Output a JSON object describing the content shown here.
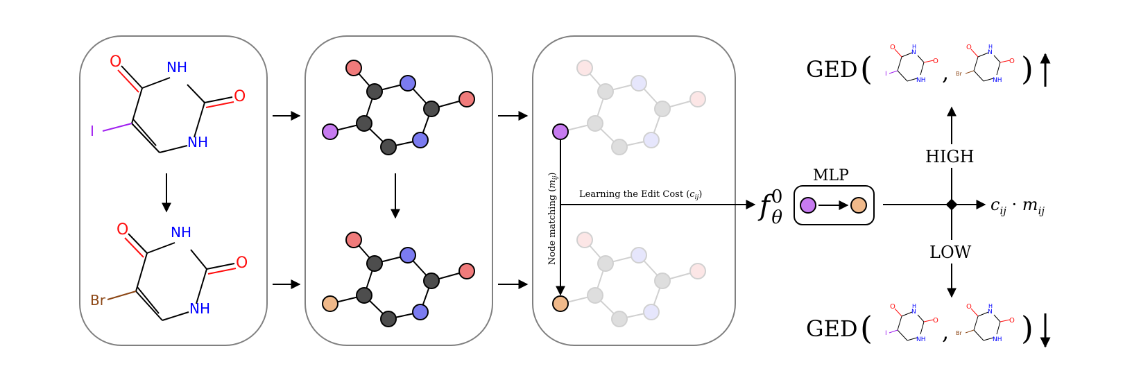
{
  "colors": {
    "oxygen": "#ff0d0d",
    "nitrogen": "#0000ff",
    "iodine": "#a020f0",
    "bromine": "#8b4513",
    "bond": "#000000",
    "node_oxygen": "#f07b7b",
    "node_nitrogen": "#7b7bf0",
    "node_carbon": "#4d4d4d",
    "node_iodine": "#c77bf0",
    "node_bromine": "#f0b98a",
    "panel_border": "#808080"
  },
  "molecule_a": {
    "atoms": {
      "O1": "O",
      "O2": "O",
      "NH1": "NH",
      "NH2": "NH",
      "X": "I"
    }
  },
  "molecule_b": {
    "atoms": {
      "O1": "O",
      "O2": "O",
      "NH1": "NH",
      "NH2": "NH",
      "X": "Br"
    }
  },
  "panel3": {
    "node_matching_label": "Node matching (m_ij)",
    "edit_cost_label": "Learning the Edit Cost (c_ij)"
  },
  "mlp": {
    "function_label": "f_θ^0",
    "box_label": "MLP"
  },
  "output": {
    "result_label": "c_ij · m_ij",
    "high_label": "HIGH",
    "low_label": "LOW",
    "ged_label": "GED",
    "small_atoms": {
      "O": "O",
      "NH": "NH",
      "N": "N",
      "H": "H",
      "I": "I",
      "Br": "Br"
    }
  }
}
